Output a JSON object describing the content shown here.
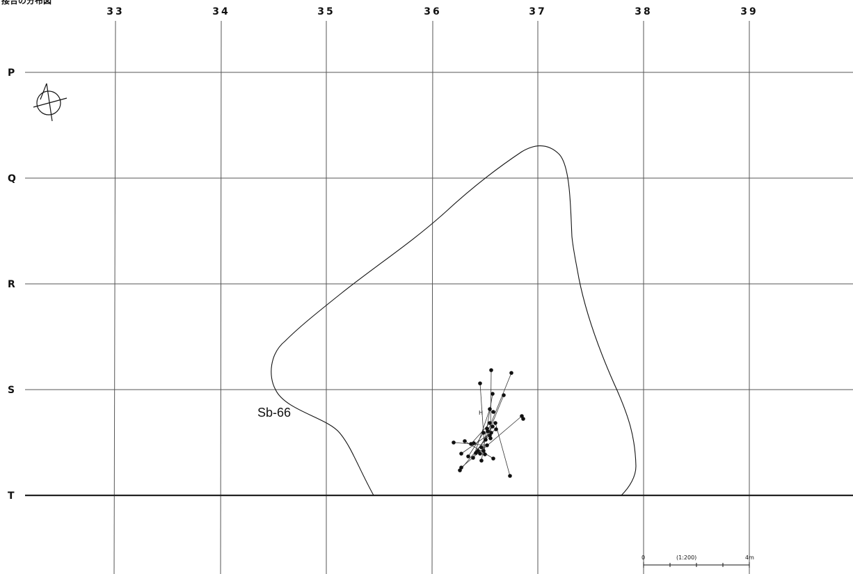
{
  "figure": {
    "title": "接合の分布図"
  },
  "grid": {
    "columns": [
      "33",
      "34",
      "35",
      "36",
      "37",
      "38",
      "39"
    ],
    "rows": [
      "P",
      "Q",
      "R",
      "S",
      "T"
    ]
  },
  "feature": {
    "label": "Sb-66"
  },
  "finds": {
    "marker_label": "H"
  },
  "scale_bar": {
    "start": "0",
    "ratio": "(1:200)",
    "end": "4m"
  },
  "north_arrow": {
    "icon": "north-arrow-icon"
  }
}
